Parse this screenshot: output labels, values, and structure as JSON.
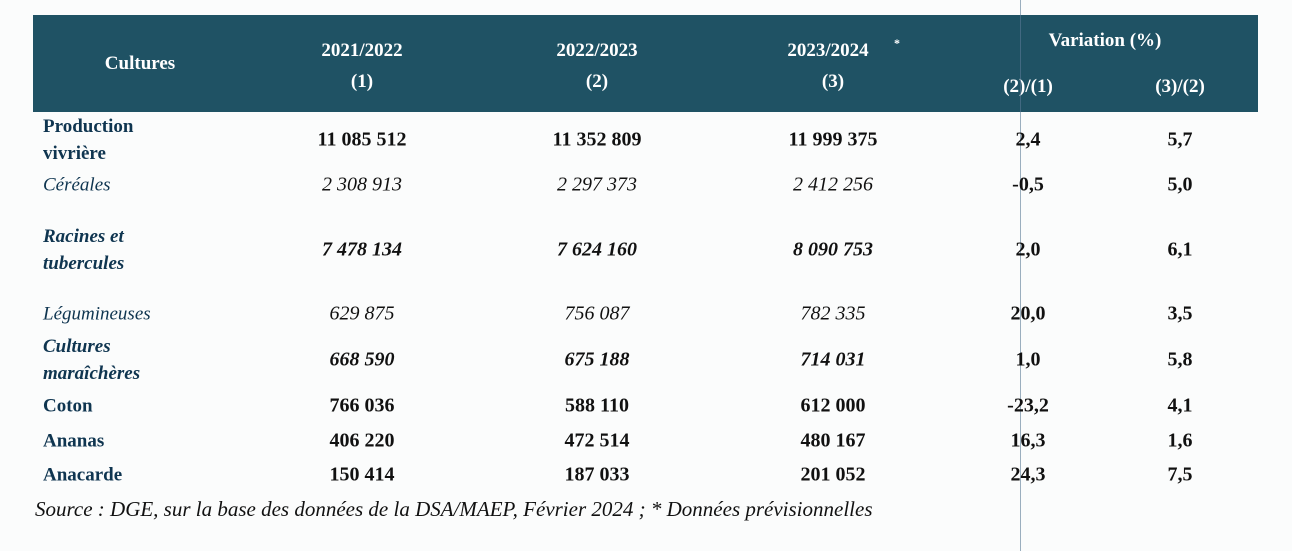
{
  "table": {
    "header": [
      "Cultures",
      "2021/2022",
      "(1)",
      "2022/2023",
      "(2)",
      "2023/2024",
      "*",
      "(3)",
      "Variation (%)",
      "(2)/(1)",
      "(3)/(2)"
    ],
    "rows": [
      [
        "Production vivrière",
        "11 085 512",
        "11 352 809",
        "11 999 375",
        "2,4",
        "5,7"
      ],
      [
        "Céréales",
        "2 308 913",
        "2 297 373",
        "2 412 256",
        "-0,5",
        "5,0"
      ],
      [
        "Racines et tubercules",
        "7 478 134",
        "7 624 160",
        "8 090 753",
        "2,0",
        "6,1"
      ],
      [
        "Légumineuses",
        "629 875",
        "756 087",
        "782 335",
        "20,0",
        "3,5"
      ],
      [
        "Cultures maraîchères",
        "668 590",
        "675 188",
        "714 031",
        "1,0",
        "5,8"
      ],
      [
        "Coton",
        "766 036",
        "588 110",
        "612 000",
        "-23,2",
        "4,1"
      ],
      [
        "Ananas",
        "406 220",
        "472 514",
        "480 167",
        "16,3",
        "1,6"
      ],
      [
        "Anacarde",
        "150 414",
        "187 033",
        "201 052",
        "24,3",
        "7,5"
      ]
    ]
  },
  "source": "Source : DGE, sur la base des données de la DSA/MAEP, Février 2024 ; * Données prévisionnelles"
}
